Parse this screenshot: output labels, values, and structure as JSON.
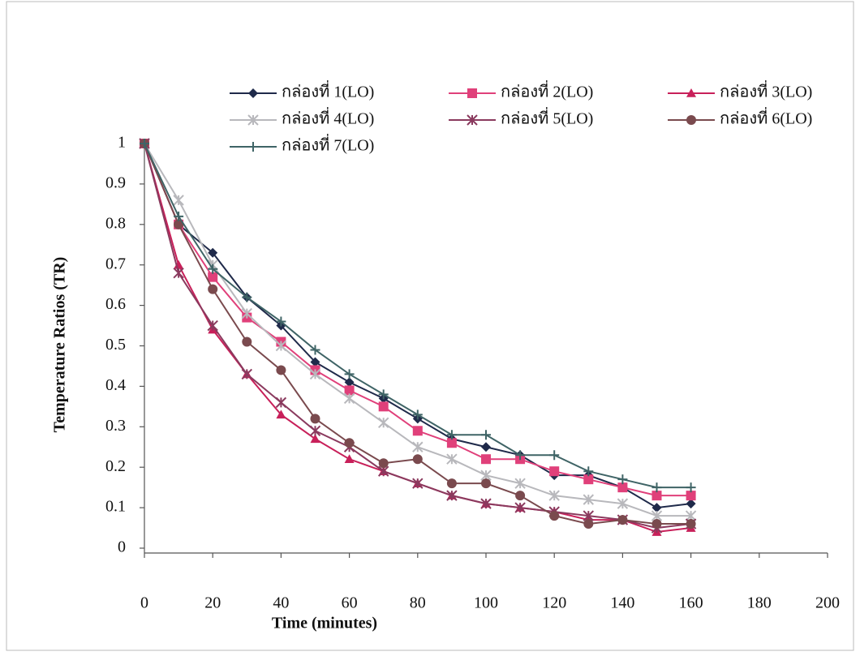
{
  "chart_data": {
    "type": "line",
    "xlabel": "Time (minutes)",
    "ylabel": "Temperature Ratios (TR)",
    "x": [
      0,
      10,
      20,
      30,
      40,
      50,
      60,
      70,
      80,
      90,
      100,
      110,
      120,
      130,
      140,
      150,
      160
    ],
    "xlim": [
      0,
      200
    ],
    "xticks": [
      0,
      20,
      40,
      60,
      80,
      100,
      120,
      140,
      160,
      180,
      200
    ],
    "ylim": [
      0,
      1
    ],
    "yticks": [
      0,
      0.1,
      0.2,
      0.3,
      0.4,
      0.5,
      0.6,
      0.7,
      0.8,
      0.9,
      1
    ],
    "grid": false,
    "legend": "top",
    "series": [
      {
        "name": "กล่องที่ 1(LO)",
        "color": "#1f2a4a",
        "marker": "diamond",
        "values": [
          1,
          0.8,
          0.73,
          0.62,
          0.55,
          0.46,
          0.41,
          0.37,
          0.32,
          0.27,
          0.25,
          0.23,
          0.18,
          0.18,
          0.15,
          0.1,
          0.11
        ]
      },
      {
        "name": "กล่องที่ 2(LO)",
        "color": "#e0407a",
        "marker": "square",
        "values": [
          1,
          0.8,
          0.67,
          0.57,
          0.51,
          0.44,
          0.39,
          0.35,
          0.29,
          0.26,
          0.22,
          0.22,
          0.19,
          0.17,
          0.15,
          0.13,
          0.13
        ]
      },
      {
        "name": "กล่องที่ 3(LO)",
        "color": "#c8205a",
        "marker": "triangle",
        "values": [
          1,
          0.7,
          0.54,
          0.43,
          0.33,
          0.27,
          0.22,
          0.19,
          0.16,
          0.13,
          0.11,
          0.1,
          0.09,
          0.07,
          0.07,
          0.04,
          0.05
        ]
      },
      {
        "name": "กล่องที่ 4(LO)",
        "color": "#b8b8bc",
        "marker": "star",
        "values": [
          1,
          0.86,
          0.7,
          0.58,
          0.5,
          0.43,
          0.37,
          0.31,
          0.25,
          0.22,
          0.18,
          0.16,
          0.13,
          0.12,
          0.11,
          0.08,
          0.08
        ]
      },
      {
        "name": "กล่องที่ 5(LO)",
        "color": "#8a3a5e",
        "marker": "asterisk",
        "values": [
          1,
          0.68,
          0.55,
          0.43,
          0.36,
          0.29,
          0.25,
          0.19,
          0.16,
          0.13,
          0.11,
          0.1,
          0.09,
          0.08,
          0.07,
          0.05,
          0.06
        ]
      },
      {
        "name": "กล่องที่ 6(LO)",
        "color": "#7a4a4e",
        "marker": "circle",
        "values": [
          1,
          0.8,
          0.64,
          0.51,
          0.44,
          0.32,
          0.26,
          0.21,
          0.22,
          0.16,
          0.16,
          0.13,
          0.08,
          0.06,
          0.07,
          0.06,
          0.06
        ]
      },
      {
        "name": "กล่องที่ 7(LO)",
        "color": "#3f6466",
        "marker": "plus",
        "values": [
          1,
          0.82,
          0.69,
          0.62,
          0.56,
          0.49,
          0.43,
          0.38,
          0.33,
          0.28,
          0.28,
          0.23,
          0.23,
          0.19,
          0.17,
          0.15,
          0.15
        ]
      }
    ]
  }
}
